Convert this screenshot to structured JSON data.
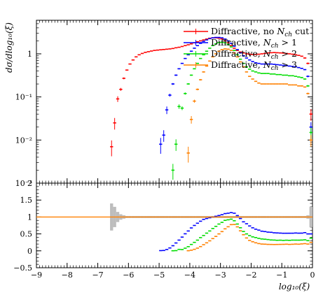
{
  "chart_data": {
    "type": "scatter",
    "top_panel": {
      "ylabel": "dσ/dlog₁₀(ξ)",
      "yscale": "log",
      "ylim": [
        0.001,
        6
      ],
      "yticks": [
        {
          "value": 1,
          "label": "1"
        },
        {
          "value": 0.1,
          "label": "10⁻¹"
        },
        {
          "value": 0.01,
          "label": "10⁻²"
        },
        {
          "value": 0.001,
          "label": "10⁻³"
        }
      ]
    },
    "bottom_panel": {
      "ylim": [
        -0.5,
        2
      ],
      "yticks": [
        {
          "value": 2,
          "label": "2"
        },
        {
          "value": 1.5,
          "label": "1.5"
        },
        {
          "value": 1,
          "label": "1"
        },
        {
          "value": 0.5,
          "label": "0.5"
        },
        {
          "value": 0,
          "label": "0"
        },
        {
          "value": -0.5,
          "label": "-0.5"
        }
      ],
      "reference_line": 1
    },
    "xlabel": "log₁₀(ξ)",
    "xlim": [
      -9,
      0
    ],
    "xticks": [
      -9,
      -8,
      -7,
      -6,
      -5,
      -4,
      -3,
      -2,
      -1,
      0
    ],
    "legend_position": "top-right",
    "series": [
      {
        "name": "Diffractive, no N_ch cut",
        "color": "#ff0000",
        "x": [
          -6.55,
          -6.45,
          -6.35,
          -6.25,
          -6.15,
          -6.05,
          -5.95,
          -5.85,
          -5.75,
          -5.65,
          -5.55,
          -5.45,
          -5.35,
          -5.25,
          -5.15,
          -5.05,
          -4.95,
          -4.85,
          -4.75,
          -4.65,
          -4.55,
          -4.45,
          -4.35,
          -4.25,
          -4.15,
          -4.05,
          -3.95,
          -3.85,
          -3.75,
          -3.65,
          -3.55,
          -3.45,
          -3.35,
          -3.25,
          -3.15,
          -3.05,
          -2.95,
          -2.85,
          -2.75,
          -2.65,
          -2.55,
          -2.45,
          -2.35,
          -2.25,
          -2.15,
          -2.05,
          -1.95,
          -1.85,
          -1.75,
          -1.65,
          -1.55,
          -1.45,
          -1.35,
          -1.25,
          -1.15,
          -1.05,
          -0.95,
          -0.85,
          -0.75,
          -0.65,
          -0.55,
          -0.45,
          -0.35,
          -0.25,
          -0.15,
          -0.05
        ],
        "y": [
          0.007,
          0.025,
          0.09,
          0.15,
          0.27,
          0.42,
          0.58,
          0.72,
          0.85,
          0.95,
          1.02,
          1.08,
          1.12,
          1.16,
          1.2,
          1.22,
          1.24,
          1.26,
          1.28,
          1.3,
          1.33,
          1.38,
          1.42,
          1.48,
          1.55,
          1.62,
          1.7,
          1.8,
          1.9,
          2.0,
          2.1,
          2.2,
          2.3,
          2.35,
          2.35,
          2.3,
          2.2,
          2.0,
          1.8,
          1.55,
          1.35,
          1.2,
          1.1,
          1.05,
          1.0,
          0.98,
          0.97,
          0.97,
          0.98,
          1.0,
          1.02,
          1.05,
          1.06,
          1.07,
          1.06,
          1.05,
          1.04,
          1.02,
          1.0,
          0.98,
          0.95,
          0.92,
          0.88,
          0.8,
          0.6,
          0.04
        ],
        "yerr": [
          0.4,
          0.3,
          0.15,
          0.08,
          0.05,
          0.03,
          0.02,
          0.02,
          0.02,
          0.02,
          0.02,
          0.02,
          0.02,
          0.02,
          0.02,
          0.02,
          0.02,
          0.02,
          0.02,
          0.02,
          0.02,
          0.02,
          0.02,
          0.02,
          0.02,
          0.02,
          0.02,
          0.02,
          0.02,
          0.02,
          0.02,
          0.02,
          0.02,
          0.02,
          0.02,
          0.02,
          0.02,
          0.02,
          0.02,
          0.02,
          0.02,
          0.02,
          0.02,
          0.02,
          0.02,
          0.02,
          0.02,
          0.02,
          0.02,
          0.02,
          0.02,
          0.02,
          0.02,
          0.02,
          0.02,
          0.02,
          0.02,
          0.02,
          0.02,
          0.02,
          0.02,
          0.02,
          0.02,
          0.03,
          0.05,
          0.3
        ]
      },
      {
        "name": "Diffractive, N_ch > 1",
        "color": "#0000ff",
        "x": [
          -4.95,
          -4.85,
          -4.75,
          -4.65,
          -4.55,
          -4.45,
          -4.35,
          -4.25,
          -4.15,
          -4.05,
          -3.95,
          -3.85,
          -3.75,
          -3.65,
          -3.55,
          -3.45,
          -3.35,
          -3.25,
          -3.15,
          -3.05,
          -2.95,
          -2.85,
          -2.75,
          -2.65,
          -2.55,
          -2.45,
          -2.35,
          -2.25,
          -2.15,
          -2.05,
          -1.95,
          -1.85,
          -1.75,
          -1.65,
          -1.55,
          -1.45,
          -1.35,
          -1.25,
          -1.15,
          -1.05,
          -0.95,
          -0.85,
          -0.75,
          -0.65,
          -0.55,
          -0.45,
          -0.35,
          -0.25,
          -0.15,
          -0.05
        ],
        "y": [
          0.008,
          0.013,
          0.05,
          0.11,
          0.2,
          0.32,
          0.45,
          0.6,
          0.78,
          0.95,
          1.15,
          1.35,
          1.55,
          1.75,
          1.95,
          2.1,
          2.25,
          2.35,
          2.4,
          2.4,
          2.35,
          2.2,
          2.0,
          1.75,
          1.5,
          1.25,
          1.05,
          0.9,
          0.8,
          0.72,
          0.66,
          0.62,
          0.6,
          0.58,
          0.58,
          0.58,
          0.58,
          0.57,
          0.56,
          0.55,
          0.54,
          0.53,
          0.52,
          0.51,
          0.5,
          0.48,
          0.46,
          0.43,
          0.3,
          0.02
        ],
        "yerr": [
          0.4,
          0.3,
          0.2,
          0.08,
          0.05,
          0.04,
          0.03,
          0.02,
          0.02,
          0.02,
          0.02,
          0.02,
          0.02,
          0.02,
          0.02,
          0.02,
          0.02,
          0.02,
          0.02,
          0.02,
          0.02,
          0.02,
          0.02,
          0.02,
          0.02,
          0.02,
          0.02,
          0.02,
          0.02,
          0.02,
          0.02,
          0.02,
          0.02,
          0.02,
          0.02,
          0.02,
          0.02,
          0.02,
          0.02,
          0.02,
          0.02,
          0.02,
          0.02,
          0.02,
          0.02,
          0.02,
          0.03,
          0.03,
          0.05,
          0.3
        ]
      },
      {
        "name": "Diffractive, N_ch > 2",
        "color": "#00dd00",
        "x": [
          -4.55,
          -4.45,
          -4.35,
          -4.25,
          -4.15,
          -4.05,
          -3.95,
          -3.85,
          -3.75,
          -3.65,
          -3.55,
          -3.45,
          -3.35,
          -3.25,
          -3.15,
          -3.05,
          -2.95,
          -2.85,
          -2.75,
          -2.65,
          -2.55,
          -2.45,
          -2.35,
          -2.25,
          -2.15,
          -2.05,
          -1.95,
          -1.85,
          -1.75,
          -1.65,
          -1.55,
          -1.45,
          -1.35,
          -1.25,
          -1.15,
          -1.05,
          -0.95,
          -0.85,
          -0.75,
          -0.65,
          -0.55,
          -0.45,
          -0.35,
          -0.25,
          -0.15,
          -0.05
        ],
        "y": [
          0.002,
          0.008,
          0.06,
          0.055,
          0.12,
          0.2,
          0.32,
          0.45,
          0.6,
          0.78,
          0.95,
          1.15,
          1.35,
          1.55,
          1.7,
          1.82,
          1.85,
          1.8,
          1.65,
          1.45,
          1.2,
          0.95,
          0.75,
          0.6,
          0.5,
          0.44,
          0.4,
          0.38,
          0.36,
          0.35,
          0.35,
          0.35,
          0.34,
          0.34,
          0.33,
          0.33,
          0.32,
          0.32,
          0.31,
          0.31,
          0.3,
          0.29,
          0.28,
          0.26,
          0.18,
          0.015
        ],
        "yerr": [
          0.4,
          0.3,
          0.12,
          0.1,
          0.06,
          0.04,
          0.03,
          0.02,
          0.02,
          0.02,
          0.02,
          0.02,
          0.02,
          0.02,
          0.02,
          0.02,
          0.02,
          0.02,
          0.02,
          0.02,
          0.02,
          0.02,
          0.02,
          0.02,
          0.02,
          0.02,
          0.02,
          0.02,
          0.02,
          0.02,
          0.02,
          0.02,
          0.02,
          0.02,
          0.02,
          0.02,
          0.02,
          0.02,
          0.02,
          0.02,
          0.02,
          0.02,
          0.03,
          0.03,
          0.05,
          0.3
        ]
      },
      {
        "name": "Diffractive, N_ch > 3",
        "color": "#ff8000",
        "x": [
          -4.05,
          -3.95,
          -3.85,
          -3.75,
          -3.65,
          -3.55,
          -3.45,
          -3.35,
          -3.25,
          -3.15,
          -3.05,
          -2.95,
          -2.85,
          -2.75,
          -2.65,
          -2.55,
          -2.45,
          -2.35,
          -2.25,
          -2.15,
          -2.05,
          -1.95,
          -1.85,
          -1.75,
          -1.65,
          -1.55,
          -1.45,
          -1.35,
          -1.25,
          -1.15,
          -1.05,
          -0.95,
          -0.85,
          -0.75,
          -0.65,
          -0.55,
          -0.45,
          -0.35,
          -0.25,
          -0.15,
          -0.05
        ],
        "y": [
          0.005,
          0.03,
          0.08,
          0.15,
          0.25,
          0.38,
          0.52,
          0.68,
          0.85,
          1.0,
          1.15,
          1.25,
          1.3,
          1.28,
          1.2,
          1.05,
          0.85,
          0.65,
          0.5,
          0.38,
          0.3,
          0.26,
          0.23,
          0.21,
          0.2,
          0.2,
          0.2,
          0.2,
          0.2,
          0.2,
          0.2,
          0.2,
          0.2,
          0.19,
          0.19,
          0.19,
          0.18,
          0.18,
          0.17,
          0.12,
          0.01
        ],
        "yerr": [
          0.4,
          0.2,
          0.08,
          0.05,
          0.04,
          0.03,
          0.02,
          0.02,
          0.02,
          0.02,
          0.02,
          0.02,
          0.02,
          0.02,
          0.02,
          0.02,
          0.02,
          0.02,
          0.02,
          0.02,
          0.02,
          0.02,
          0.02,
          0.02,
          0.02,
          0.02,
          0.02,
          0.02,
          0.02,
          0.02,
          0.02,
          0.02,
          0.02,
          0.02,
          0.02,
          0.02,
          0.02,
          0.03,
          0.03,
          0.05,
          0.3
        ]
      }
    ]
  },
  "legend": {
    "items": [
      {
        "prefix": "Diffractive, ",
        "main": "no ",
        "sym": "N",
        "sub": "ch",
        "rest": " cut",
        "color": "#ff0000"
      },
      {
        "prefix": "Diffractive, ",
        "main": "",
        "sym": "N",
        "sub": "ch",
        "rest": " > 1",
        "color": "#0000ff"
      },
      {
        "prefix": "Diffractive, ",
        "main": "",
        "sym": "N",
        "sub": "ch",
        "rest": " > 2",
        "color": "#00dd00"
      },
      {
        "prefix": "Diffractive, ",
        "main": "",
        "sym": "N",
        "sub": "ch",
        "rest": " > 3",
        "color": "#ff8000"
      }
    ]
  }
}
